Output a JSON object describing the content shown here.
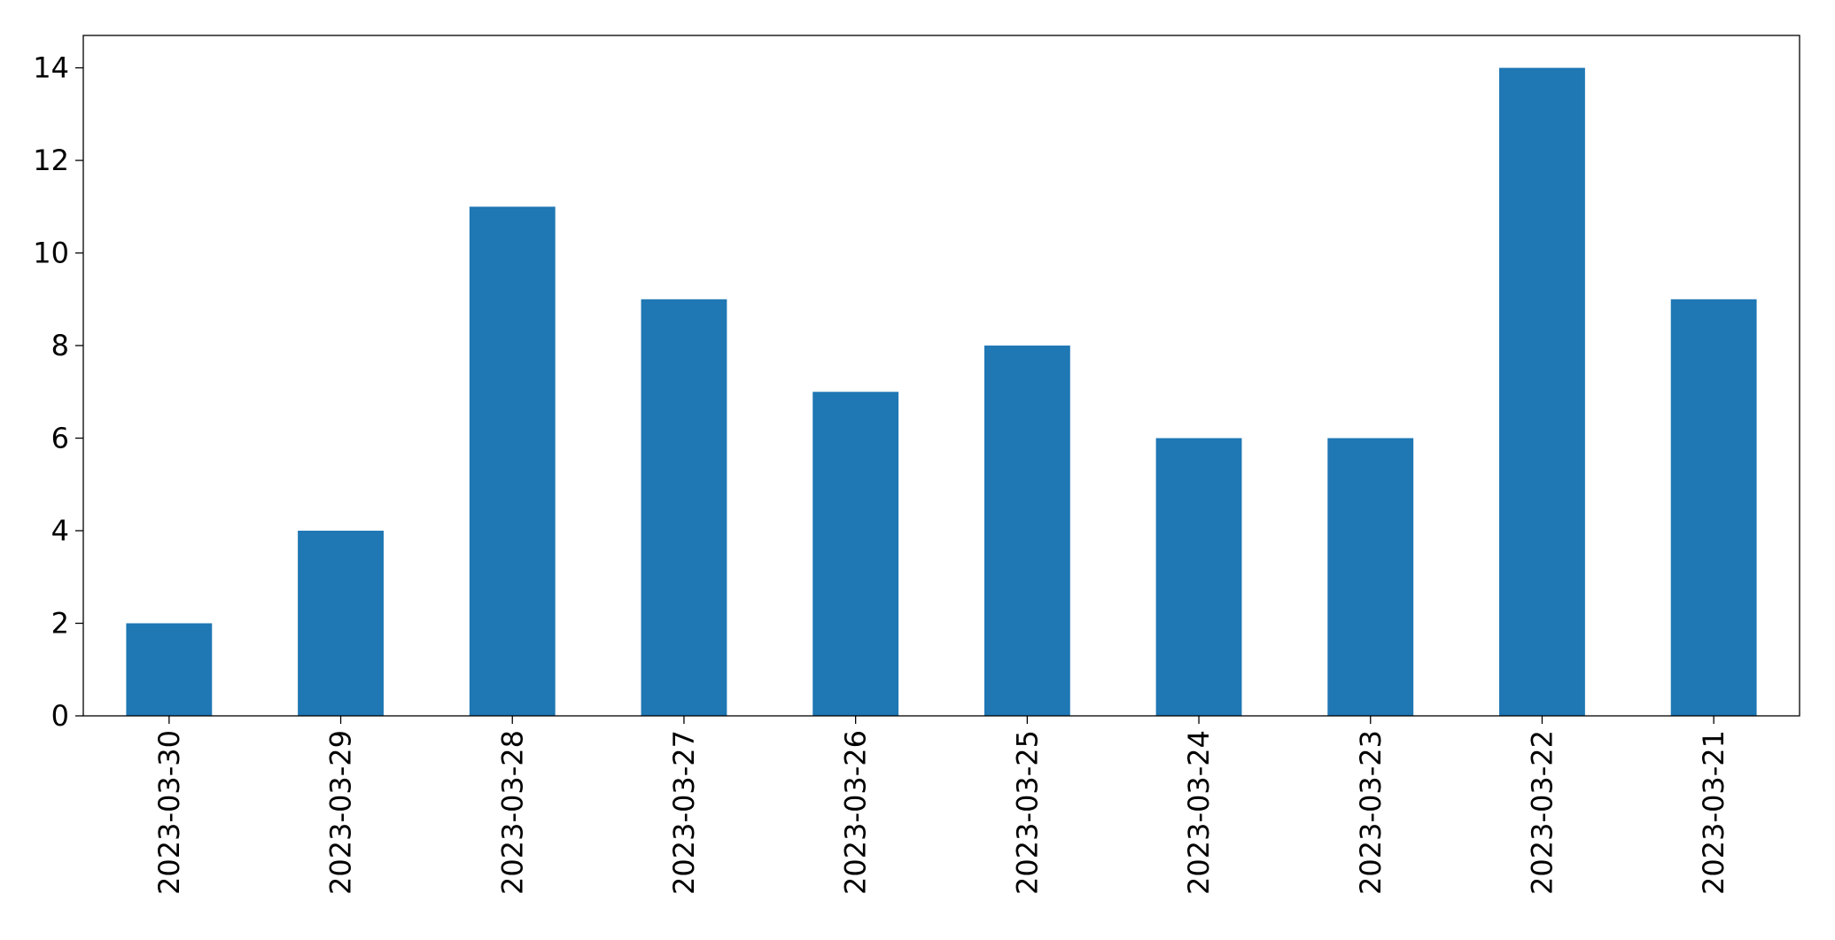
{
  "chart_data": {
    "type": "bar",
    "categories": [
      "2023-03-30",
      "2023-03-29",
      "2023-03-28",
      "2023-03-27",
      "2023-03-26",
      "2023-03-25",
      "2023-03-24",
      "2023-03-23",
      "2023-03-22",
      "2023-03-21"
    ],
    "values": [
      2,
      4,
      11,
      9,
      7,
      8,
      6,
      6,
      14,
      9
    ],
    "color": "#1f77b4",
    "ylim": [
      0,
      14.7
    ],
    "yticks": [
      0,
      2,
      4,
      6,
      8,
      10,
      12,
      14
    ],
    "grid": false
  }
}
